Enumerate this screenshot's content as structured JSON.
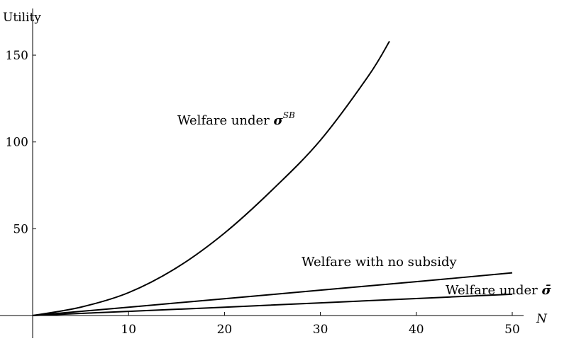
{
  "chart_data": {
    "type": "line",
    "ylabel": "Utility",
    "xlabel": "N",
    "xlim": [
      0,
      50
    ],
    "ylim": [
      0,
      160
    ],
    "x_ticks": [
      10,
      20,
      30,
      40,
      50
    ],
    "y_ticks": [
      50,
      100,
      150
    ],
    "grid": false,
    "series": [
      {
        "name": "Welfare under σ^SB",
        "x": [
          0,
          5,
          10,
          15,
          20,
          25,
          30,
          35,
          37.2
        ],
        "y": [
          0,
          4.8,
          13.2,
          27.5,
          47.5,
          72.5,
          101,
          138,
          158
        ]
      },
      {
        "name": "Welfare with no subsidy",
        "x": [
          0,
          10,
          20,
          30,
          40,
          50
        ],
        "y": [
          0,
          4.8,
          9.7,
          14.6,
          19.5,
          24.6
        ]
      },
      {
        "name": "Welfare under σ̄",
        "x": [
          0,
          10,
          20,
          30,
          40,
          50
        ],
        "y": [
          0,
          2.4,
          4.8,
          7.3,
          9.8,
          12.3
        ]
      }
    ],
    "annotations": {
      "sb_prefix": "Welfare under ",
      "sb_symbol": "σ",
      "sb_superscript": "SB",
      "no_subsidy": "Welfare with no subsidy",
      "bar_prefix": "Welfare under ",
      "bar_symbol": "σ̄"
    }
  }
}
